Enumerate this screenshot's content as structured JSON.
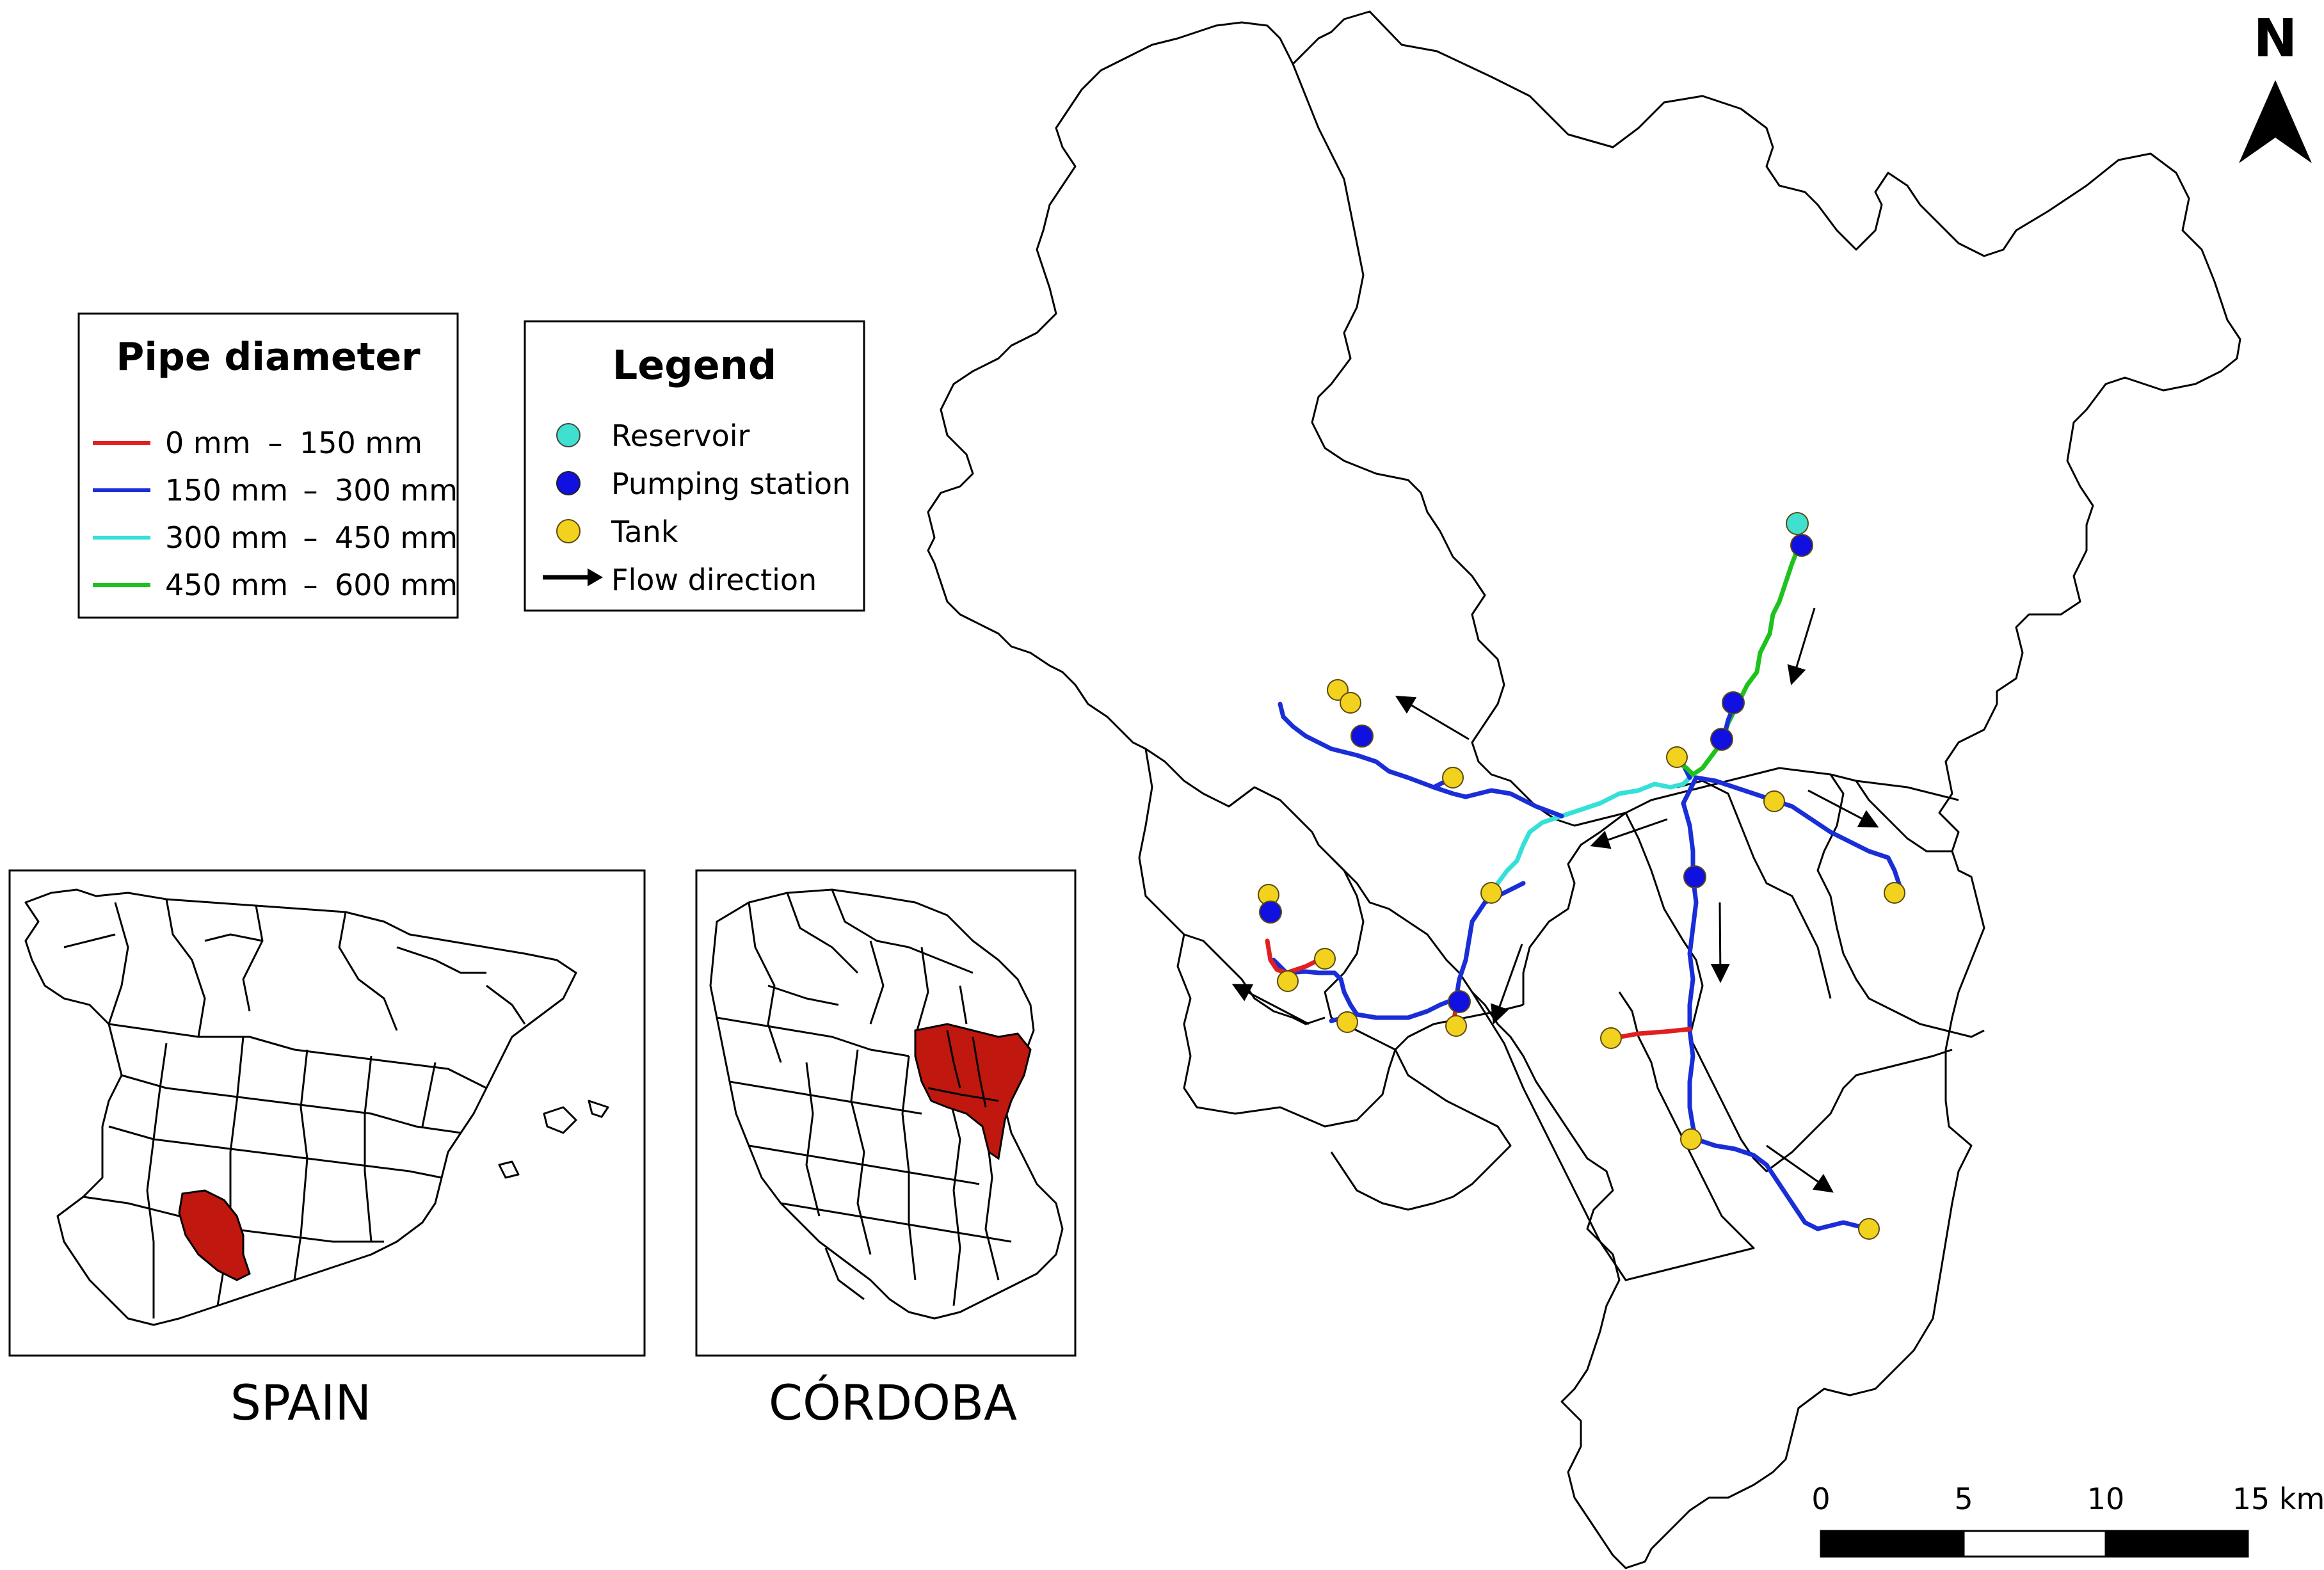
{
  "north_arrow": {
    "label": "N"
  },
  "pipe_legend": {
    "title": "Pipe diameter",
    "items": [
      {
        "from": "0 mm",
        "to": "150 mm",
        "color": "#e02020"
      },
      {
        "from": "150 mm",
        "to": "300 mm",
        "color": "#1a2ed8"
      },
      {
        "from": "300 mm",
        "to": "450 mm",
        "color": "#34e0d8"
      },
      {
        "from": "450 mm",
        "to": "600 mm",
        "color": "#1ec21e"
      }
    ]
  },
  "legend": {
    "title": "Legend",
    "items": [
      {
        "label": "Reservoir",
        "symbol": "circle",
        "color": "#40e0d0"
      },
      {
        "label": "Pumping station",
        "symbol": "circle",
        "color": "#1010e0"
      },
      {
        "label": "Tank",
        "symbol": "circle",
        "color": "#f2d21e"
      },
      {
        "label": "Flow direction",
        "symbol": "arrow",
        "color": "#000000"
      }
    ]
  },
  "insets": [
    {
      "caption": "SPAIN",
      "highlight_color": "#c0170e"
    },
    {
      "caption": "CÓRDOBA",
      "highlight_color": "#c0170e"
    }
  ],
  "scale_bar": {
    "ticks": [
      "0",
      "5",
      "10",
      "15 km"
    ]
  }
}
